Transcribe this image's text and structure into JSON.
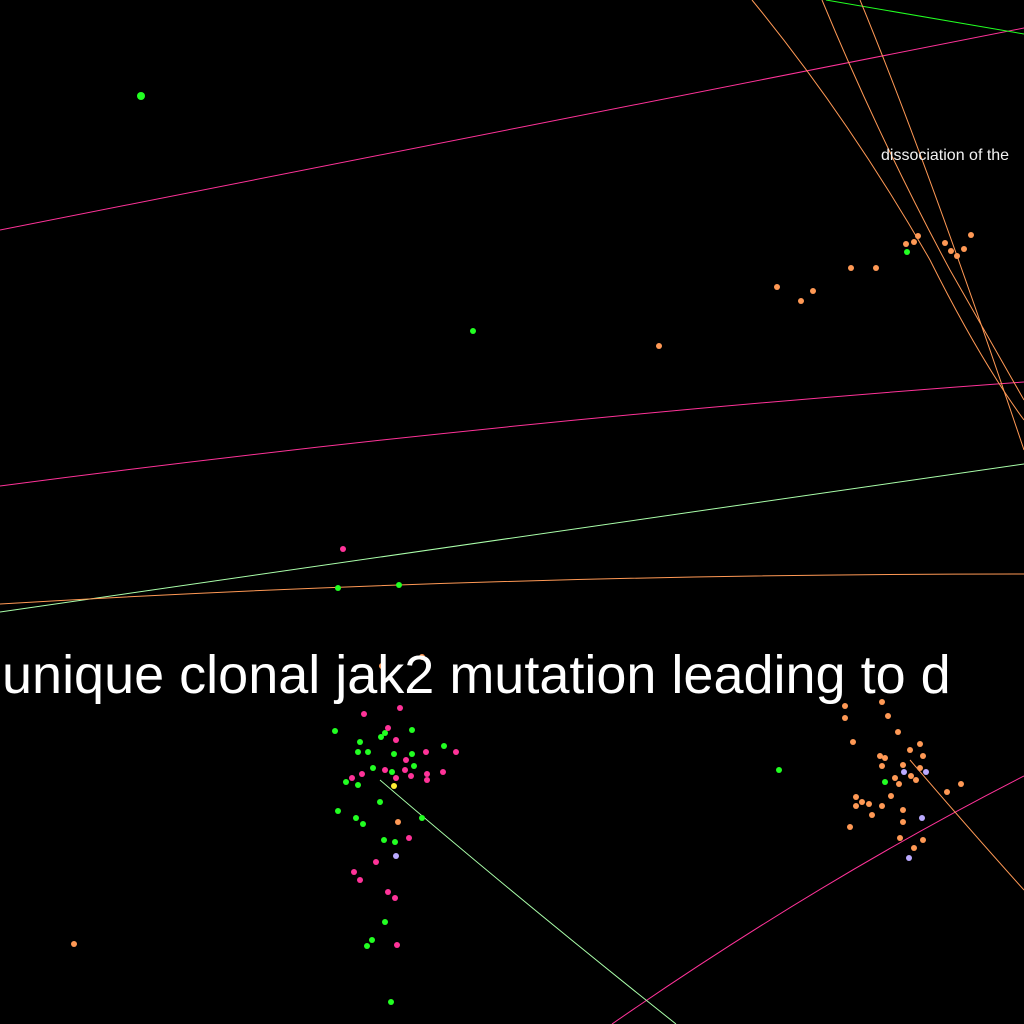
{
  "labels": {
    "cluster_label": "dissociation of the",
    "main_label": "unique clonal jak2 mutation leading to d"
  },
  "colors": {
    "background": "#000000",
    "green": "#22ff22",
    "orange": "#ff9955",
    "pink": "#ff3399",
    "lavender": "#bbaaff",
    "yellow": "#ffee33",
    "pale_green": "#aaffaa",
    "text": "#ffffff"
  }
}
